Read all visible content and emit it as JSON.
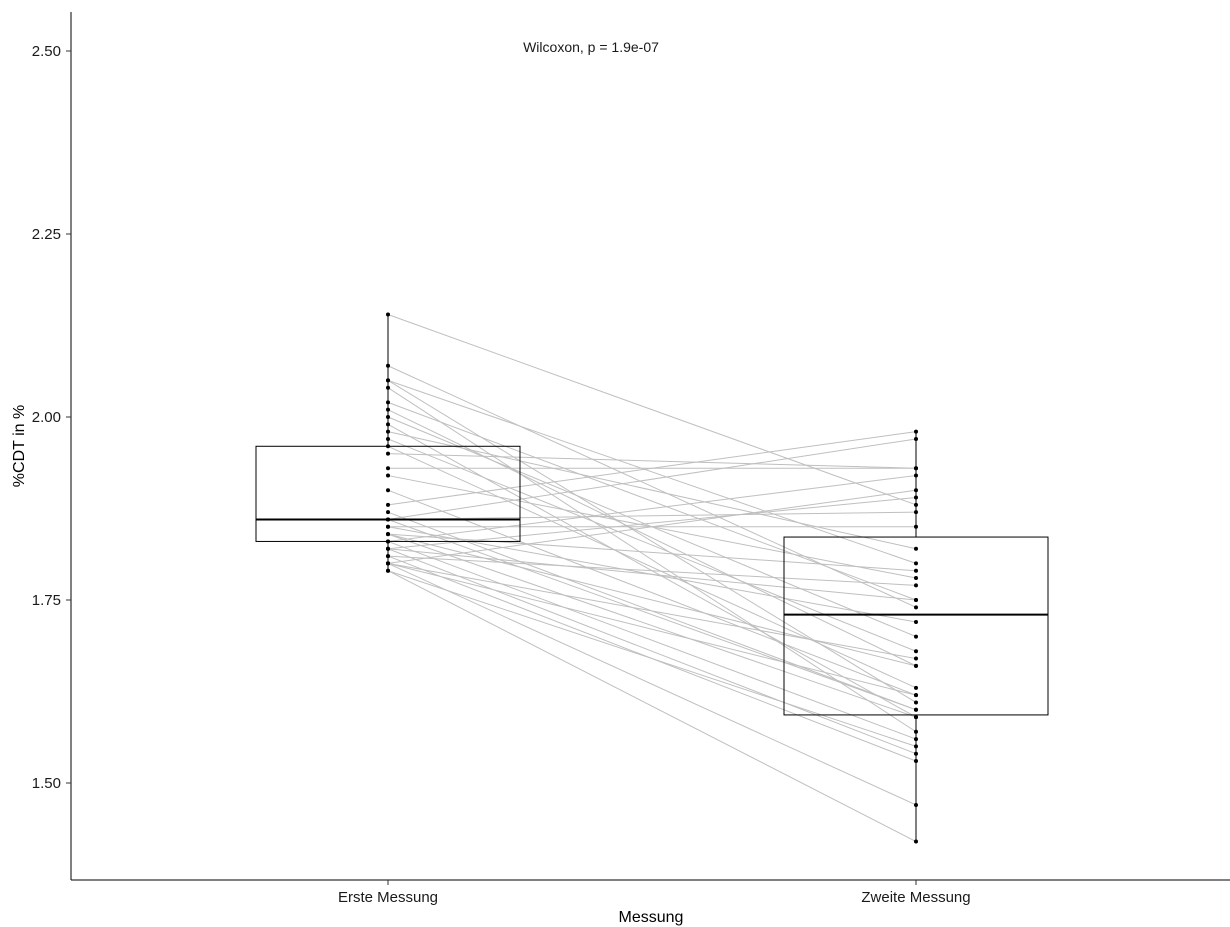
{
  "chart_data": {
    "type": "boxplot",
    "annotation": "Wilcoxon, p = 1.9e-07",
    "xlabel": "Messung",
    "ylabel": "%CDT in %",
    "ylim": [
      1.365,
      2.555
    ],
    "y_ticks": [
      1.5,
      1.75,
      2.0,
      2.25,
      2.5
    ],
    "y_tick_labels": [
      "1.50",
      "1.75",
      "2.00",
      "2.25",
      "2.50"
    ],
    "categories": [
      "Erste Messung",
      "Zweite Messung"
    ],
    "boxes": [
      {
        "category": "Erste Messung",
        "q1": 1.83,
        "median": 1.86,
        "q3": 1.96,
        "min": 1.79,
        "max": 2.14
      },
      {
        "category": "Zweite Messung",
        "q1": 1.593,
        "median": 1.73,
        "q3": 1.836,
        "min": 1.42,
        "max": 1.98
      }
    ],
    "grid": false,
    "legend": "none",
    "point_color": "#000000",
    "line_color": "#bfbfbf",
    "paired_points": [
      [
        2.14,
        1.88
      ],
      [
        2.07,
        1.74
      ],
      [
        2.05,
        1.8
      ],
      [
        2.05,
        1.61
      ],
      [
        2.04,
        1.57
      ],
      [
        2.02,
        1.75
      ],
      [
        2.01,
        1.66
      ],
      [
        2.0,
        1.7
      ],
      [
        1.99,
        1.59
      ],
      [
        1.98,
        1.82
      ],
      [
        1.97,
        1.68
      ],
      [
        1.96,
        1.63
      ],
      [
        1.95,
        1.93
      ],
      [
        1.93,
        1.93
      ],
      [
        1.92,
        1.78
      ],
      [
        1.9,
        1.62
      ],
      [
        1.88,
        1.98
      ],
      [
        1.87,
        1.6
      ],
      [
        1.86,
        1.87
      ],
      [
        1.86,
        1.97
      ],
      [
        1.85,
        1.85
      ],
      [
        1.85,
        1.72
      ],
      [
        1.84,
        1.59
      ],
      [
        1.84,
        1.66
      ],
      [
        1.83,
        1.92
      ],
      [
        1.83,
        1.56
      ],
      [
        1.82,
        1.89
      ],
      [
        1.82,
        1.54
      ],
      [
        1.81,
        1.77
      ],
      [
        1.81,
        1.53
      ],
      [
        1.8,
        1.9
      ],
      [
        1.8,
        1.47
      ],
      [
        1.8,
        1.62
      ],
      [
        1.79,
        1.42
      ],
      [
        1.79,
        1.55
      ],
      [
        1.82,
        1.75
      ],
      [
        1.84,
        1.79
      ],
      [
        1.86,
        1.6
      ],
      [
        1.8,
        1.67
      ]
    ]
  }
}
